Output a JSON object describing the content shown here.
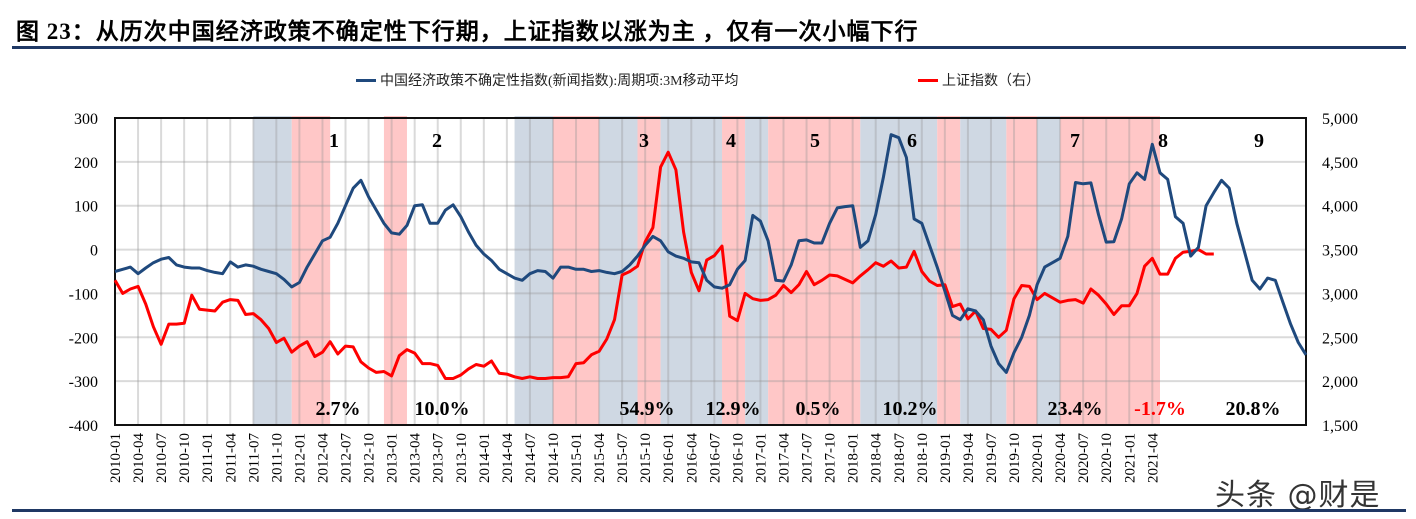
{
  "title": "图 23：从历次中国经济政策不确定性下行期，上证指数以涨为主 ，仅有一次小幅下行",
  "watermark": "头条 @财是",
  "legend": [
    {
      "label": "中国经济政策不确定性指数(新闻指数):周期项:3M移动平均",
      "color": "#1f497d"
    },
    {
      "label": "上证指数（右）",
      "color": "#ff0000"
    }
  ],
  "colors": {
    "uncertainty_line": "#1f497d",
    "sse_line": "#ff0000",
    "down_period_shade": "#ffc7c7",
    "up_period_shade": "#cfd8e3",
    "rule": "#1f3864",
    "negative_label": "#ff0000"
  },
  "chart_data": {
    "type": "line",
    "title": "图 23：从历次中国经济政策不确定性下行期，上证指数以涨为主 ，仅有一次小幅下行",
    "xlabel": "",
    "ylabel_left": "",
    "ylabel_right": "",
    "x_start": "2010-01",
    "x_end": "2021-05",
    "x_tick_labels": [
      "2010-01",
      "2010-04",
      "2010-07",
      "2010-10",
      "2011-01",
      "2011-04",
      "2011-07",
      "2011-10",
      "2012-01",
      "2012-04",
      "2012-07",
      "2012-10",
      "2013-01",
      "2013-04",
      "2013-07",
      "2013-10",
      "2014-01",
      "2014-04",
      "2014-07",
      "2014-10",
      "2015-01",
      "2015-04",
      "2015-07",
      "2015-10",
      "2016-01",
      "2016-04",
      "2016-07",
      "2016-10",
      "2017-01",
      "2017-04",
      "2017-07",
      "2017-10",
      "2018-01",
      "2018-04",
      "2018-07",
      "2018-10",
      "2019-01",
      "2019-04",
      "2019-07",
      "2019-10",
      "2020-01",
      "2020-04",
      "2020-07",
      "2020-10",
      "2021-01",
      "2021-04"
    ],
    "ylim_left": [
      -400,
      300
    ],
    "yticks_left": [
      300,
      200,
      100,
      0,
      -100,
      -200,
      -300,
      -400
    ],
    "ylim_right": [
      1500,
      5000
    ],
    "yticks_right": [
      "5,000",
      "4,500",
      "4,000",
      "3,500",
      "3,000",
      "2,500",
      "2,000",
      "1,500"
    ],
    "grid": true,
    "legend_position": "top",
    "series": [
      {
        "name": "中国经济政策不确定性指数(新闻指数):周期项:3M移动平均",
        "axis": "left",
        "values": [
          -50,
          -45,
          -40,
          -55,
          -42,
          -30,
          -22,
          -18,
          -35,
          -40,
          -42,
          -42,
          -48,
          -52,
          -55,
          -28,
          -40,
          -35,
          -38,
          -45,
          -50,
          -55,
          -68,
          -85,
          -75,
          -40,
          -10,
          20,
          28,
          60,
          100,
          140,
          158,
          120,
          90,
          60,
          38,
          35,
          55,
          100,
          102,
          60,
          60,
          90,
          102,
          75,
          40,
          10,
          -10,
          -25,
          -45,
          -55,
          -65,
          -70,
          -55,
          -48,
          -50,
          -65,
          -40,
          -40,
          -45,
          -45,
          -50,
          -48,
          -52,
          -55,
          -50,
          -35,
          -15,
          10,
          30,
          20,
          -5,
          -15,
          -20,
          -28,
          -30,
          -70,
          -85,
          -88,
          -80,
          -45,
          -25,
          78,
          65,
          20,
          -70,
          -72,
          -35,
          20,
          22,
          15,
          15,
          60,
          95,
          98,
          100,
          5,
          20,
          80,
          165,
          262,
          255,
          210,
          70,
          60,
          10,
          -40,
          -95,
          -150,
          -160,
          -135,
          -140,
          -160,
          -220,
          -260,
          -280,
          -235,
          -200,
          -150,
          -80,
          -40,
          -30,
          -20,
          30,
          153,
          150,
          152,
          80,
          17,
          18,
          70,
          150,
          175,
          160,
          240,
          175,
          160,
          75,
          60,
          -15,
          5,
          100,
          130,
          158,
          140,
          60,
          -5,
          -70,
          -90,
          -65,
          -70,
          -120,
          -170,
          -212,
          -240
        ]
      },
      {
        "name": "上证指数（右）",
        "axis": "right",
        "values": [
          3150,
          3000,
          3050,
          3080,
          2880,
          2620,
          2420,
          2650,
          2650,
          2660,
          2980,
          2820,
          2810,
          2800,
          2900,
          2930,
          2920,
          2760,
          2770,
          2700,
          2600,
          2440,
          2490,
          2330,
          2400,
          2450,
          2280,
          2330,
          2450,
          2310,
          2400,
          2390,
          2220,
          2150,
          2100,
          2110,
          2060,
          2290,
          2360,
          2320,
          2200,
          2200,
          2180,
          2030,
          2030,
          2070,
          2140,
          2190,
          2170,
          2230,
          2090,
          2080,
          2050,
          2030,
          2050,
          2030,
          2030,
          2040,
          2040,
          2050,
          2200,
          2210,
          2300,
          2340,
          2480,
          2700,
          3210,
          3250,
          3310,
          3590,
          3750,
          4440,
          4610,
          4410,
          3700,
          3240,
          3030,
          3380,
          3430,
          3540,
          2740,
          2690,
          3000,
          2940,
          2920,
          2930,
          2980,
          3090,
          3010,
          3100,
          3250,
          3100,
          3150,
          3210,
          3200,
          3160,
          3120,
          3200,
          3270,
          3350,
          3310,
          3370,
          3290,
          3300,
          3480,
          3250,
          3140,
          3090,
          3100,
          2850,
          2880,
          2710,
          2800,
          2600,
          2590,
          2500,
          2580,
          2940,
          3090,
          3080,
          2930,
          3000,
          2950,
          2900,
          2920,
          2930,
          2890,
          3050,
          2980,
          2880,
          2760,
          2860,
          2860,
          3000,
          3310,
          3400,
          3220,
          3220,
          3400,
          3470,
          3480,
          3500,
          3450,
          3450
        ]
      }
    ],
    "shaded_regions": [
      {
        "type": "up",
        "start": "2011-07",
        "end": "2011-12"
      },
      {
        "type": "down",
        "id": "1",
        "start": "2011-12",
        "end": "2012-05",
        "sse_change": "2.7%"
      },
      {
        "type": "down",
        "id": "2",
        "start": "2012-12",
        "end": "2013-03",
        "sse_change": "10.0%"
      },
      {
        "type": "up",
        "start": "2014-05",
        "end": "2014-10"
      },
      {
        "type": "down",
        "id": "3",
        "start": "2014-10",
        "end": "2015-04"
      },
      {
        "type": "up",
        "start": "2015-04",
        "end": "2015-09"
      },
      {
        "type": "down",
        "id": "4",
        "start": "2015-09",
        "end": "2015-12",
        "sse_change": "12.9%"
      },
      {
        "type": "up",
        "start": "2015-12",
        "end": "2016-08"
      },
      {
        "type": "down",
        "id": "5",
        "start": "2016-08",
        "end": "2016-11",
        "sse_change": "0.5%"
      },
      {
        "type": "up",
        "start": "2016-11",
        "end": "2017-02"
      },
      {
        "type": "down",
        "id": "6",
        "start": "2017-02",
        "end": "2018-02",
        "sse_change": "10.2%"
      },
      {
        "type": "up",
        "start": "2018-02",
        "end": "2018-12"
      },
      {
        "type": "down",
        "id": "7",
        "start": "2018-12",
        "end": "2019-03",
        "sse_change": "23.4%"
      },
      {
        "type": "up",
        "start": "2019-03",
        "end": "2019-09"
      },
      {
        "type": "down",
        "id": "8",
        "start": "2019-09",
        "end": "2020-01",
        "sse_change": "-1.7%"
      },
      {
        "type": "up",
        "start": "2020-01",
        "end": "2020-04"
      },
      {
        "type": "down",
        "id": "9",
        "start": "2020-04",
        "end": "2021-05",
        "sse_change": "20.8%"
      }
    ],
    "annotations": [
      {
        "label": "1",
        "pct": "2.7%"
      },
      {
        "label": "2",
        "pct": "10.0%"
      },
      {
        "label": "3",
        "pct": "54.9%"
      },
      {
        "label": "4",
        "pct": "12.9%"
      },
      {
        "label": "5",
        "pct": "0.5%"
      },
      {
        "label": "6",
        "pct": "10.2%"
      },
      {
        "label": "7",
        "pct": "23.4%"
      },
      {
        "label": "8",
        "pct": "-1.7%"
      },
      {
        "label": "9",
        "pct": "20.8%"
      }
    ]
  }
}
